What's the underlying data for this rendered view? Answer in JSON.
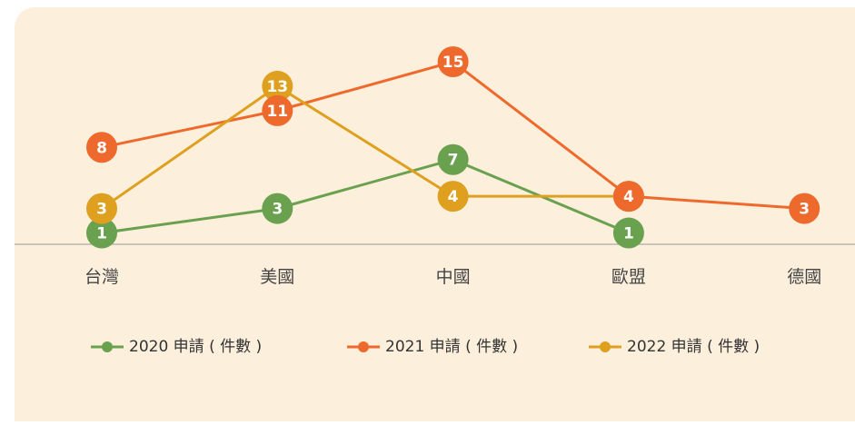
{
  "chart_data": {
    "type": "line",
    "categories": [
      "台灣",
      "美國",
      "中國",
      "歐盟",
      "德國"
    ],
    "series": [
      {
        "name": "2020 申請 ( 件數 )",
        "color": "#6aa14f",
        "values": [
          1,
          3,
          7,
          1,
          null
        ]
      },
      {
        "name": "2021 申請 ( 件數 )",
        "color": "#ee6a2c",
        "values": [
          8,
          11,
          15,
          4,
          3
        ]
      },
      {
        "name": "2022 申請 ( 件數 )",
        "color": "#dfa020",
        "values": [
          3,
          13,
          4,
          4,
          null
        ]
      }
    ],
    "ylim": [
      0,
      15
    ],
    "legend": "bottom"
  }
}
